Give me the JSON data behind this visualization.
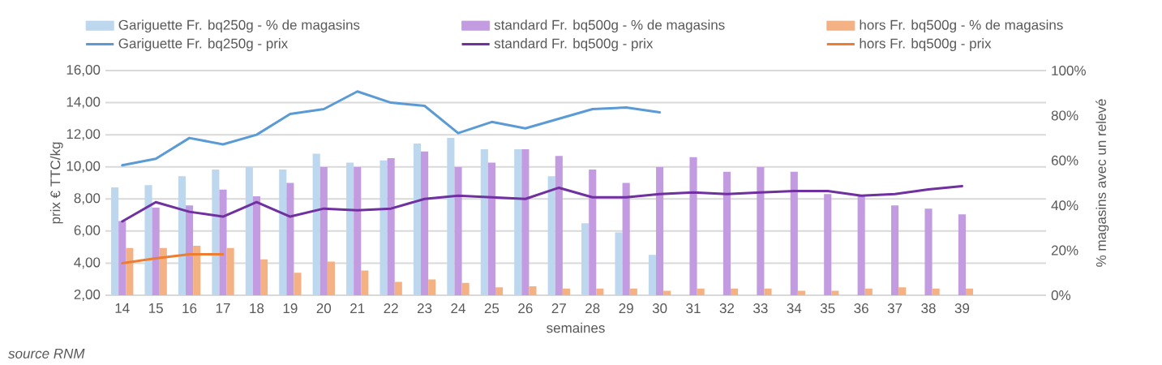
{
  "chart_data": {
    "type": "bar",
    "xlabel": "semaines",
    "ylabel": "prix € TTC/kg",
    "y2label": "% magasins avec un relevé",
    "categories": [
      "14",
      "15",
      "16",
      "17",
      "18",
      "19",
      "20",
      "21",
      "22",
      "23",
      "24",
      "25",
      "26",
      "27",
      "28",
      "29",
      "30",
      "31",
      "32",
      "33",
      "34",
      "35",
      "36",
      "37",
      "38",
      "39",
      null,
      null
    ],
    "series": [
      {
        "name": "Gariguette Fr. bq250g - % de magasins",
        "axis": "y2",
        "color": "#bdd7ee",
        "values": [
          48,
          49,
          53,
          56,
          57,
          56,
          63,
          59,
          60,
          67.5,
          70,
          65,
          65,
          53,
          32,
          28,
          18,
          null,
          null,
          null,
          null,
          null,
          null,
          null,
          null,
          null,
          null,
          null
        ]
      },
      {
        "name": "standard Fr. bq500g - % de magasins",
        "axis": "y2",
        "color": "#c39be0",
        "values": [
          33,
          39,
          40,
          47,
          44,
          50,
          57,
          57,
          61,
          64,
          57,
          59,
          65,
          62,
          56,
          50,
          57,
          61.5,
          55,
          57,
          55,
          45,
          44,
          40,
          38.5,
          36,
          null,
          null
        ]
      },
      {
        "name": "hors Fr. bq500g - % de magasins",
        "axis": "y2",
        "color": "#f4b183",
        "values": [
          21,
          21,
          22,
          21,
          16,
          10,
          15,
          11,
          6,
          7,
          5.5,
          3.5,
          4,
          3,
          3,
          3,
          2,
          3,
          3,
          3,
          2,
          2,
          3,
          3.5,
          3,
          3,
          null,
          null
        ]
      },
      {
        "name": "Gariguette Fr. bq250g - prix",
        "type": "line",
        "color": "#5b9bd5",
        "values": [
          10.1,
          10.5,
          11.8,
          11.4,
          12.0,
          13.3,
          13.6,
          14.7,
          14.0,
          13.8,
          12.1,
          12.8,
          12.4,
          13.0,
          13.6,
          13.7,
          13.4,
          null,
          null,
          null,
          null,
          null,
          null,
          null,
          null,
          null,
          null,
          null
        ]
      },
      {
        "name": "standard Fr. bq500g - prix",
        "type": "line",
        "color": "#7030a0",
        "values": [
          6.6,
          7.8,
          7.2,
          6.9,
          7.8,
          6.9,
          7.4,
          7.3,
          7.4,
          8.0,
          8.2,
          8.1,
          8.0,
          8.7,
          8.1,
          8.1,
          8.3,
          8.4,
          8.3,
          8.4,
          8.5,
          8.5,
          8.2,
          8.3,
          8.6,
          8.8,
          null,
          null
        ]
      },
      {
        "name": "hors Fr. bq500g - prix",
        "type": "line",
        "color": "#ed7d31",
        "values": [
          4.0,
          4.3,
          4.55,
          4.55,
          null,
          null,
          null,
          null,
          null,
          null,
          null,
          null,
          null,
          null,
          null,
          null,
          null,
          null,
          null,
          null,
          null,
          null,
          null,
          null,
          null,
          null,
          null,
          null
        ]
      }
    ],
    "ylim": [
      2,
      16
    ],
    "yticks": [
      {
        "value": 2,
        "label": "2,00"
      },
      {
        "value": 4,
        "label": "4,00"
      },
      {
        "value": 6,
        "label": "6,00"
      },
      {
        "value": 8,
        "label": "8,00"
      },
      {
        "value": 10,
        "label": "10,00"
      },
      {
        "value": 12,
        "label": "12,00"
      },
      {
        "value": 14,
        "label": "14,00"
      },
      {
        "value": 16,
        "label": "16,00"
      }
    ],
    "y2lim": [
      0,
      100
    ],
    "y2ticks": [
      {
        "value": 0,
        "label": "0%"
      },
      {
        "value": 20,
        "label": "20%"
      },
      {
        "value": 40,
        "label": "40%"
      },
      {
        "value": 60,
        "label": "60%"
      },
      {
        "value": 80,
        "label": "80%"
      },
      {
        "value": 100,
        "label": "100%"
      }
    ],
    "grid": "y",
    "legend": "top",
    "line_style": "solid",
    "annotations": [
      "source RNM"
    ]
  }
}
